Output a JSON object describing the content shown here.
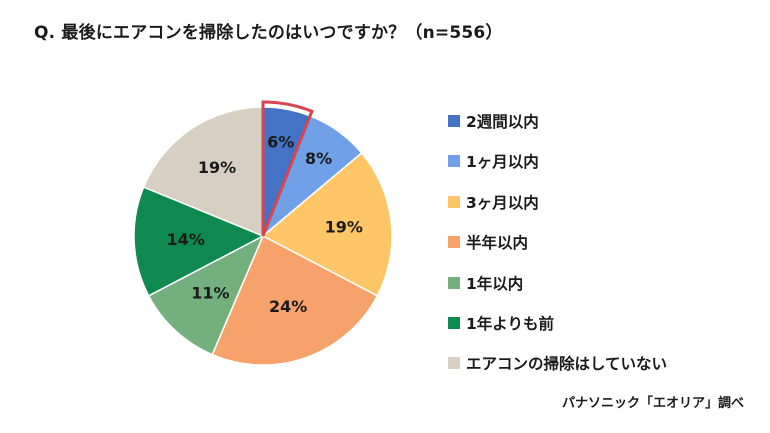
{
  "title": "Q. 最後にエアコンを掃除したのはいつですか？（n=556）",
  "source": "パナソニック「エオリア」調べ",
  "chart_data": {
    "type": "pie",
    "title": "Q. 最後にエアコンを掃除したのはいつですか？（n=556）",
    "labels": [
      "2週間以内",
      "1ヶ月以内",
      "3ヶ月以内",
      "半年以内",
      "1年以内",
      "1年よりも前",
      "エアコンの掃除はしていない"
    ],
    "values": [
      6,
      8,
      19,
      24,
      11,
      14,
      19
    ],
    "value_labels": [
      "6%",
      "8%",
      "19%",
      "24%",
      "11%",
      "14%",
      "19%"
    ],
    "colors": [
      "#4472C4",
      "#6FA0E8",
      "#FFC667",
      "#F7A16B",
      "#74B07E",
      "#0E8A50",
      "#D7CFC1"
    ],
    "highlight_index": 0,
    "highlight_color": "#D64550",
    "legend_position": "right",
    "start_angle": "12 o'clock",
    "direction": "clockwise"
  }
}
